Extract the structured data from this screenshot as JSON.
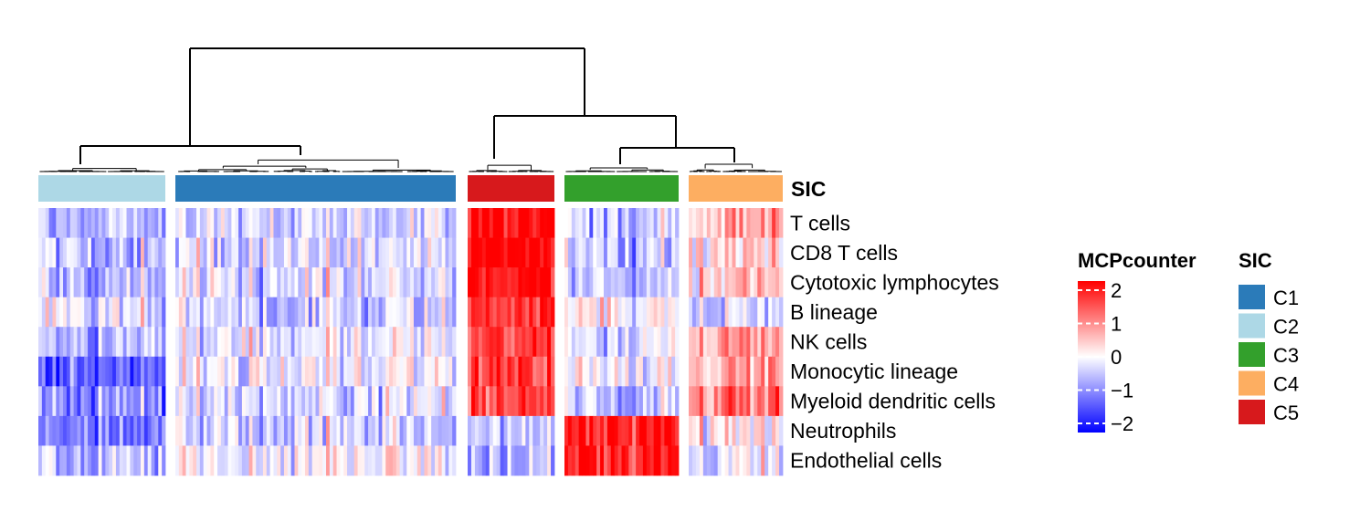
{
  "chart_data": {
    "type": "heatmap",
    "title": "",
    "xlabel": "",
    "ylabel": "",
    "annotation_name": "SIC",
    "rows": [
      "T cells",
      "CD8 T cells",
      "Cytotoxic lymphocytes",
      "B lineage",
      "NK cells",
      "Monocytic lineage",
      "Myeloid dendritic cells",
      "Neutrophils",
      "Endothelial cells"
    ],
    "column_groups": [
      {
        "name": "C2",
        "color": "#ADD8E6",
        "samples": 36,
        "mean_z": [
          -0.6,
          -0.5,
          -0.6,
          -0.3,
          -0.5,
          -1.3,
          -0.9,
          -1.0,
          -0.6
        ]
      },
      {
        "name": "C1",
        "color": "#2B7BB9",
        "samples": 80,
        "mean_z": [
          -0.3,
          -0.3,
          -0.3,
          -0.4,
          -0.1,
          -0.1,
          -0.2,
          -0.3,
          0.0
        ]
      },
      {
        "name": "C5",
        "color": "#D7191C",
        "samples": 24,
        "mean_z": [
          2.0,
          2.0,
          1.9,
          1.6,
          1.5,
          1.5,
          1.4,
          -0.4,
          -0.5
        ]
      },
      {
        "name": "C3",
        "color": "#33A02C",
        "samples": 32,
        "mean_z": [
          -0.5,
          -0.4,
          -0.4,
          0.0,
          -0.2,
          -0.1,
          -0.3,
          1.8,
          1.9
        ]
      },
      {
        "name": "C4",
        "color": "#FDAE61",
        "samples": 26,
        "mean_z": [
          0.6,
          0.4,
          0.4,
          -0.4,
          0.6,
          0.6,
          1.0,
          0.1,
          -0.1
        ]
      }
    ],
    "color_scale": {
      "name": "MCPcounter",
      "min": -2,
      "max": 2,
      "low": "#0000FF",
      "mid": "#FFFFFF",
      "high": "#FF0000",
      "ticks": [
        "2",
        "1",
        "0",
        "−1",
        "−2"
      ]
    },
    "annotation_legend": {
      "title": "SIC",
      "entries": [
        {
          "label": "C1",
          "color": "#2B7BB9"
        },
        {
          "label": "C2",
          "color": "#ADD8E6"
        },
        {
          "label": "C3",
          "color": "#33A02C"
        },
        {
          "label": "C4",
          "color": "#FDAE61"
        },
        {
          "label": "C5",
          "color": "#D7191C"
        }
      ]
    },
    "dendrogram": {
      "merge_order": [
        [
          "C5",
          "C3",
          "C4"
        ],
        [
          "C2",
          "C1"
        ]
      ],
      "top_split": [
        [
          "C2",
          "C1"
        ],
        [
          "C5",
          "C3",
          "C4"
        ]
      ]
    },
    "legend_position": "right"
  }
}
